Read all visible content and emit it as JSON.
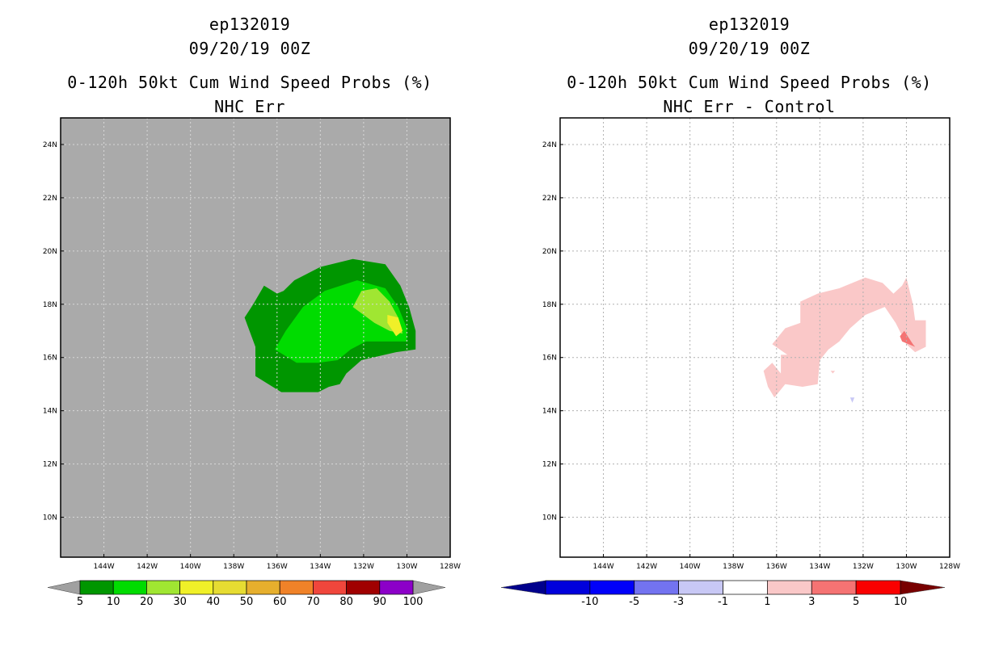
{
  "panels": [
    {
      "storm_id": "ep132019",
      "datetime": "09/20/19 00Z",
      "title": "0-120h 50kt Cum Wind Speed Probs (%)",
      "subtitle": "NHC Err",
      "background": "#aaaaaa",
      "colorbar": {
        "labels": [
          "5",
          "10",
          "20",
          "30",
          "40",
          "50",
          "60",
          "70",
          "80",
          "90",
          "100"
        ],
        "colors": [
          "#009600",
          "#00dc00",
          "#a0e632",
          "#f0f028",
          "#e6dc32",
          "#e6af2d",
          "#f08228",
          "#f0463c",
          "#a00000",
          "#8c00c8"
        ],
        "end_left": "#a0a0a0",
        "end_right": "#a0a0a0"
      }
    },
    {
      "storm_id": "ep132019",
      "datetime": "09/20/19 00Z",
      "title": "0-120h 50kt Cum Wind Speed Probs (%)",
      "subtitle": "NHC Err - Control",
      "background": "#ffffff",
      "colorbar": {
        "labels": [
          "-10",
          "-5",
          "-3",
          "-1",
          "1",
          "3",
          "5",
          "10"
        ],
        "colors": [
          "#0000dc",
          "#0000fa",
          "#7373f0",
          "#c8c8f5",
          "#ffffff",
          "#fac8c8",
          "#f57373",
          "#fa0000"
        ],
        "end_left": "#00008c",
        "end_right": "#780000"
      }
    }
  ],
  "chart_data": [
    {
      "type": "heatmap",
      "title": "0-120h 50kt Cum Wind Speed Probs (%) — NHC Err",
      "x_axis": {
        "label": "",
        "range": [
          -146,
          -128
        ],
        "ticks": [
          "144W",
          "142W",
          "140W",
          "138W",
          "136W",
          "134W",
          "132W",
          "130W",
          "128W"
        ]
      },
      "y_axis": {
        "label": "",
        "range": [
          8.5,
          25
        ],
        "ticks": [
          "24N",
          "22N",
          "20N",
          "18N",
          "16N",
          "14N",
          "12N",
          "10N"
        ]
      },
      "grid": true,
      "contour_levels": [
        5,
        10,
        20,
        30,
        40,
        50,
        60,
        70,
        80,
        90,
        100
      ],
      "regions": [
        {
          "level": 5,
          "color": "#009600",
          "points": [
            [
              -137.5,
              17.5
            ],
            [
              -137.1,
              18.0
            ],
            [
              -136.6,
              18.7
            ],
            [
              -136.0,
              18.4
            ],
            [
              -135.7,
              18.5
            ],
            [
              -135.2,
              18.9
            ],
            [
              -134.0,
              19.4
            ],
            [
              -132.5,
              19.7
            ],
            [
              -131.0,
              19.5
            ],
            [
              -130.3,
              18.7
            ],
            [
              -129.9,
              17.9
            ],
            [
              -129.6,
              17.0
            ],
            [
              -129.6,
              16.3
            ],
            [
              -130.5,
              16.2
            ],
            [
              -132.1,
              15.9
            ],
            [
              -132.8,
              15.4
            ],
            [
              -133.1,
              15.0
            ],
            [
              -133.6,
              14.9
            ],
            [
              -134.1,
              14.7
            ],
            [
              -135.1,
              14.7
            ],
            [
              -135.8,
              14.7
            ],
            [
              -136.4,
              15.0
            ],
            [
              -137.0,
              15.3
            ],
            [
              -137.0,
              16.4
            ]
          ]
        },
        {
          "level": 10,
          "color": "#00dc00",
          "points": [
            [
              -136.1,
              16.3
            ],
            [
              -135.6,
              17.0
            ],
            [
              -134.8,
              17.9
            ],
            [
              -133.8,
              18.5
            ],
            [
              -132.3,
              18.9
            ],
            [
              -131.0,
              18.6
            ],
            [
              -130.4,
              17.9
            ],
            [
              -130.0,
              17.1
            ],
            [
              -130.0,
              16.6
            ],
            [
              -130.7,
              16.6
            ],
            [
              -131.9,
              16.6
            ],
            [
              -132.6,
              16.3
            ],
            [
              -133.2,
              15.9
            ],
            [
              -134.1,
              15.8
            ],
            [
              -135.1,
              15.8
            ]
          ]
        },
        {
          "level": 20,
          "color": "#a0e632",
          "points": [
            [
              -132.5,
              17.9
            ],
            [
              -132.1,
              18.5
            ],
            [
              -131.4,
              18.6
            ],
            [
              -130.8,
              18.1
            ],
            [
              -130.4,
              17.5
            ],
            [
              -130.2,
              16.9
            ],
            [
              -130.8,
              17.0
            ],
            [
              -131.5,
              17.3
            ]
          ]
        },
        {
          "level": 30,
          "color": "#f0f028",
          "points": [
            [
              -130.9,
              17.6
            ],
            [
              -130.4,
              17.5
            ],
            [
              -130.2,
              17.0
            ],
            [
              -130.5,
              16.8
            ],
            [
              -130.9,
              17.3
            ]
          ]
        }
      ]
    },
    {
      "type": "heatmap",
      "title": "0-120h 50kt Cum Wind Speed Probs (%) — NHC Err - Control",
      "x_axis": {
        "label": "",
        "range": [
          -146,
          -128
        ],
        "ticks": [
          "144W",
          "142W",
          "140W",
          "138W",
          "136W",
          "134W",
          "132W",
          "130W",
          "128W"
        ]
      },
      "y_axis": {
        "label": "",
        "range": [
          8.5,
          25
        ],
        "ticks": [
          "24N",
          "22N",
          "20N",
          "18N",
          "16N",
          "14N",
          "12N",
          "10N"
        ]
      },
      "grid": true,
      "contour_levels": [
        -10,
        -5,
        -3,
        -1,
        1,
        3,
        5,
        10
      ],
      "regions": [
        {
          "level": 1,
          "color": "#fac8c8",
          "points": [
            [
              -136.2,
              16.5
            ],
            [
              -135.6,
              17.1
            ],
            [
              -134.9,
              17.3
            ],
            [
              -134.9,
              18.1
            ],
            [
              -134.1,
              18.4
            ],
            [
              -133.1,
              18.6
            ],
            [
              -131.9,
              19.0
            ],
            [
              -131.1,
              18.8
            ],
            [
              -130.6,
              18.4
            ],
            [
              -130.2,
              18.7
            ],
            [
              -130.0,
              19.0
            ],
            [
              -129.7,
              18.0
            ],
            [
              -129.6,
              17.4
            ],
            [
              -129.1,
              17.4
            ],
            [
              -129.1,
              16.4
            ],
            [
              -129.6,
              16.2
            ],
            [
              -130.0,
              16.5
            ],
            [
              -130.5,
              17.3
            ],
            [
              -131.0,
              17.9
            ],
            [
              -131.9,
              17.6
            ],
            [
              -132.6,
              17.1
            ],
            [
              -133.1,
              16.6
            ],
            [
              -133.6,
              16.3
            ],
            [
              -134.0,
              15.9
            ],
            [
              -134.1,
              15.0
            ],
            [
              -134.8,
              14.9
            ],
            [
              -135.6,
              15.0
            ],
            [
              -136.1,
              14.5
            ],
            [
              -136.4,
              14.9
            ],
            [
              -136.6,
              15.5
            ],
            [
              -136.2,
              15.8
            ],
            [
              -135.8,
              15.4
            ],
            [
              -135.8,
              16.1
            ],
            [
              -135.5,
              16.1
            ]
          ]
        },
        {
          "level": 3,
          "color": "#f57373",
          "points": [
            [
              -130.1,
              17.0
            ],
            [
              -129.7,
              16.5
            ],
            [
              -129.6,
              16.4
            ],
            [
              -130.2,
              16.6
            ],
            [
              -130.3,
              16.8
            ]
          ]
        },
        {
          "level": 1,
          "color": "#fac8c8",
          "points": [
            [
              -133.5,
              15.5
            ],
            [
              -133.4,
              15.4
            ],
            [
              -133.3,
              15.5
            ]
          ]
        },
        {
          "level": -1,
          "color": "#c8c8f5",
          "points": [
            [
              -132.6,
              14.5
            ],
            [
              -132.4,
              14.5
            ],
            [
              -132.5,
              14.3
            ]
          ]
        }
      ]
    }
  ]
}
